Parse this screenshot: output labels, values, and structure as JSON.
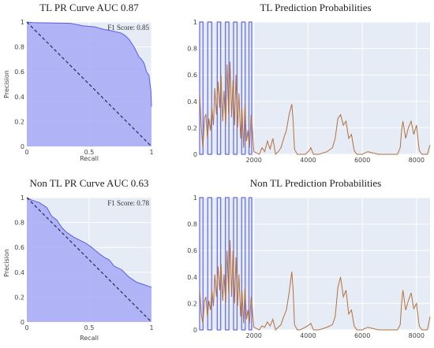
{
  "colors": {
    "plot_bg": "#e5ecf6",
    "grid": "#ffffff",
    "pr_fill": "#a7a9f5",
    "pr_line": "#5a5de6",
    "diag": "#1f2d4d",
    "label_line": "#6b70e8",
    "prob_line": "#b5703e"
  },
  "chart_data": [
    {
      "type": "area",
      "title": "TL PR Curve AUC 0.87",
      "annotation": "F1 Score: 0.85",
      "xlabel": "Recall",
      "ylabel": "Precision",
      "xlim": [
        0,
        1
      ],
      "ylim": [
        0,
        1
      ],
      "xticks": [
        "0",
        "0.5",
        "1"
      ],
      "yticks": [
        "0",
        "0.2",
        "0.4",
        "0.6",
        "0.8",
        "1"
      ],
      "grid": true,
      "series": [
        {
          "x": [
            0,
            0.05,
            0.35,
            0.45,
            0.55,
            0.62,
            0.68,
            0.72,
            0.76,
            0.79,
            0.82,
            0.84,
            0.86,
            0.88,
            0.9,
            0.92,
            0.94,
            0.96,
            0.98,
            0.995,
            1
          ],
          "y": [
            1,
            0.995,
            0.99,
            0.97,
            0.96,
            0.94,
            0.93,
            0.92,
            0.91,
            0.89,
            0.86,
            0.83,
            0.8,
            0.76,
            0.72,
            0.7,
            0.67,
            0.6,
            0.57,
            0.45,
            0.32
          ]
        },
        {
          "x": [
            0,
            1
          ],
          "y": [
            1,
            0
          ]
        }
      ]
    },
    {
      "type": "line",
      "title": "TL Prediction Probabilities",
      "xlim": [
        0,
        8500
      ],
      "ylim": [
        0,
        1
      ],
      "xticks": [
        "2000",
        "4000",
        "6000",
        "8000"
      ],
      "yticks": [
        "0",
        "0.2",
        "0.4",
        "0.6",
        "0.8",
        "1"
      ],
      "grid": true,
      "labels_pulses": [
        [
          0,
          125
        ],
        [
          300,
          445
        ],
        [
          650,
          775
        ],
        [
          950,
          1080
        ],
        [
          1250,
          1380
        ],
        [
          1550,
          1680
        ],
        [
          1820,
          1920
        ]
      ],
      "series": [
        {
          "x": [
            0,
            60,
            120,
            180,
            230,
            290,
            340,
            400,
            450,
            510,
            560,
            620,
            680,
            740,
            790,
            850,
            900,
            960,
            1010,
            1070,
            1120,
            1180,
            1230,
            1290,
            1340,
            1400,
            1450,
            1510,
            1560,
            1620,
            1670,
            1730,
            1780,
            1840,
            1900,
            1960,
            2000,
            2100,
            2200,
            2300,
            2400,
            2500,
            2600,
            2700,
            2800,
            2900,
            3000,
            3100,
            3200,
            3300,
            3400,
            3450,
            3500,
            3600,
            3700,
            3900,
            4050,
            4100,
            4200,
            4400,
            4700,
            4900,
            5000,
            5100,
            5200,
            5300,
            5400,
            5500,
            5600,
            5700,
            5800,
            6000,
            6200,
            6600,
            7000,
            7300,
            7400,
            7450,
            7500,
            7600,
            7700,
            7800,
            7900,
            8000,
            8100,
            8200,
            8300,
            8400,
            8500
          ],
          "y": [
            0.45,
            0.2,
            0.05,
            0.28,
            0.3,
            0.12,
            0.27,
            0.18,
            0.35,
            0.22,
            0.5,
            0.3,
            0.55,
            0.35,
            0.6,
            0.25,
            0.48,
            0.22,
            0.68,
            0.3,
            0.7,
            0.28,
            0.56,
            0.22,
            0.6,
            0.2,
            0.46,
            0.12,
            0.35,
            0.05,
            0.38,
            0.1,
            0.18,
            0.05,
            0.3,
            0.15,
            0.02,
            0.01,
            0,
            0.05,
            0.02,
            0.1,
            0.04,
            0.12,
            0,
            0.02,
            0.05,
            0.12,
            0.18,
            0.3,
            0.38,
            0.25,
            0.04,
            0,
            0,
            0,
            0.03,
            0.05,
            0,
            0,
            0.02,
            0.05,
            0.12,
            0.27,
            0.3,
            0.22,
            0.25,
            0.12,
            0.15,
            0.03,
            0,
            0,
            0.02,
            0,
            0,
            0,
            0.05,
            0.18,
            0.25,
            0.12,
            0.2,
            0.25,
            0.15,
            0.22,
            0.03,
            0,
            0,
            0,
            0.07
          ]
        }
      ]
    },
    {
      "type": "area",
      "title": "Non TL PR Curve AUC 0.63",
      "annotation": "F1 Score: 0.78",
      "xlabel": "Recall",
      "ylabel": "Precision",
      "xlim": [
        0,
        1
      ],
      "ylim": [
        0,
        1
      ],
      "xticks": [
        "0",
        "0.5",
        "1"
      ],
      "yticks": [
        "0",
        "0.2",
        "0.4",
        "0.6",
        "0.8",
        "1"
      ],
      "grid": true,
      "series": [
        {
          "x": [
            0,
            0.04,
            0.1,
            0.16,
            0.2,
            0.24,
            0.28,
            0.32,
            0.38,
            0.42,
            0.48,
            0.52,
            0.58,
            0.62,
            0.66,
            0.7,
            0.76,
            0.82,
            0.88,
            0.94,
            1
          ],
          "y": [
            1,
            0.98,
            0.96,
            0.92,
            0.85,
            0.82,
            0.76,
            0.72,
            0.68,
            0.66,
            0.63,
            0.6,
            0.55,
            0.52,
            0.5,
            0.45,
            0.42,
            0.36,
            0.32,
            0.3,
            0.28
          ]
        },
        {
          "x": [
            0,
            1
          ],
          "y": [
            1,
            0
          ]
        }
      ]
    },
    {
      "type": "line",
      "title": "Non TL Prediction Probabilities",
      "xlim": [
        0,
        8500
      ],
      "ylim": [
        0,
        1
      ],
      "xticks": [
        "2000",
        "4000",
        "6000",
        "8000"
      ],
      "yticks": [
        "0",
        "0.2",
        "0.4",
        "0.6",
        "0.8",
        "1"
      ],
      "grid": true,
      "labels_pulses": [
        [
          0,
          125
        ],
        [
          300,
          445
        ],
        [
          650,
          775
        ],
        [
          950,
          1080
        ],
        [
          1250,
          1380
        ],
        [
          1550,
          1680
        ],
        [
          1820,
          1920
        ]
      ],
      "series": [
        {
          "x": [
            0,
            60,
            120,
            180,
            230,
            290,
            340,
            400,
            450,
            510,
            560,
            620,
            680,
            740,
            790,
            850,
            900,
            960,
            1010,
            1070,
            1120,
            1180,
            1230,
            1290,
            1340,
            1400,
            1450,
            1510,
            1560,
            1620,
            1670,
            1730,
            1780,
            1840,
            1900,
            1960,
            2000,
            2100,
            2200,
            2300,
            2400,
            2500,
            2600,
            2700,
            2800,
            2900,
            3000,
            3100,
            3200,
            3300,
            3400,
            3450,
            3500,
            3600,
            3700,
            3900,
            4050,
            4100,
            4200,
            4400,
            4700,
            4900,
            5000,
            5100,
            5200,
            5300,
            5400,
            5500,
            5600,
            5700,
            5800,
            6000,
            6200,
            6600,
            7000,
            7300,
            7400,
            7450,
            7500,
            7600,
            7700,
            7800,
            7900,
            8000,
            8100,
            8200,
            8300,
            8400,
            8500
          ],
          "y": [
            0.3,
            0.12,
            0.05,
            0.22,
            0.25,
            0.1,
            0.22,
            0.15,
            0.3,
            0.18,
            0.42,
            0.25,
            0.48,
            0.3,
            0.5,
            0.22,
            0.42,
            0.2,
            0.6,
            0.28,
            0.68,
            0.25,
            0.6,
            0.2,
            0.55,
            0.18,
            0.42,
            0.1,
            0.3,
            0.05,
            0.32,
            0.08,
            0.15,
            0.05,
            0.25,
            0.12,
            0.02,
            0.01,
            0,
            0.03,
            0.02,
            0.06,
            0.03,
            0.08,
            0,
            0.02,
            0.04,
            0.1,
            0.15,
            0.28,
            0.44,
            0.3,
            0.04,
            0,
            0,
            0.02,
            0.04,
            0.05,
            0,
            0,
            0.02,
            0.04,
            0.1,
            0.32,
            0.4,
            0.25,
            0.3,
            0.12,
            0.15,
            0.03,
            0,
            0,
            0.02,
            0,
            0,
            0,
            0.04,
            0.2,
            0.3,
            0.15,
            0.22,
            0.28,
            0.16,
            0.2,
            0.03,
            0,
            0,
            0,
            0.1
          ]
        }
      ]
    }
  ]
}
